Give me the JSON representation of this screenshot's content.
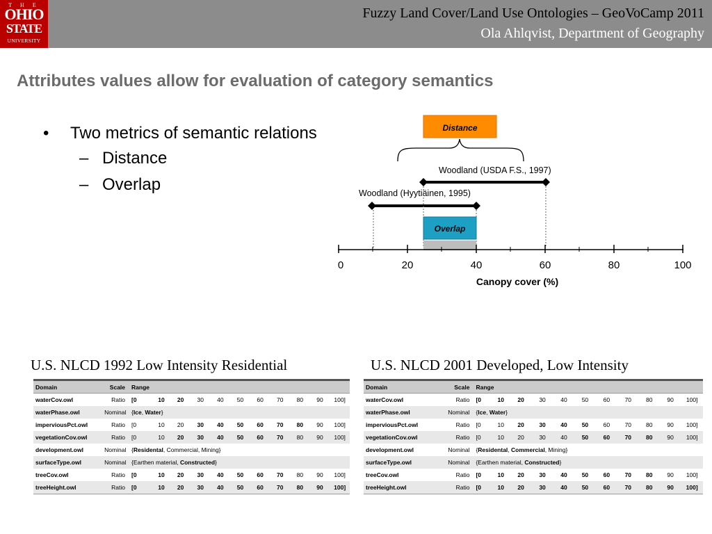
{
  "header": {
    "logo": {
      "the": "T H E",
      "ohio": "OHIO",
      "state": "STATE",
      "univ": "UNIVERSITY"
    },
    "line1": "Fuzzy Land Cover/Land Use Ontologies – GeoVoCamp 2011",
    "line2": "Ola Ahlqvist, Department of Geography"
  },
  "title": "Attributes values allow for evaluation of category semantics",
  "bullets": {
    "main": "Two metrics of semantic relations",
    "subs": [
      "Distance",
      "Overlap"
    ],
    "bullet_glyph": "•",
    "dash_glyph": "–"
  },
  "diagram": {
    "distance_label": "Distance",
    "overlap_label": "Overlap",
    "usda_label": "Woodland (USDA F.S., 1997)",
    "hyyt_label": "Woodland (Hyytiäinen, 1995)",
    "ticks": [
      "0",
      "20",
      "40",
      "60",
      "80",
      "100"
    ],
    "axis_label": "Canopy cover (%)",
    "colors": {
      "distance": "#ff8c00",
      "overlap": "#1e9fc4"
    }
  },
  "tables": [
    {
      "heading": "U.S. NLCD 1992 Low Intensity Residential",
      "columns": [
        "Domain",
        "Scale",
        "Range"
      ],
      "rows": [
        {
          "domain": "waterCov.owl",
          "scale": "Ratio",
          "range": "[0|10|20|30|40|50|60|70|80|90|100]",
          "bold": [
            0,
            1,
            2
          ]
        },
        {
          "domain": "waterPhase.owl",
          "scale": "Nominal",
          "range": "{Ice, Water}",
          "bold": []
        },
        {
          "domain": "imperviousPct.owl",
          "scale": "Ratio",
          "range": "[0|10|20|30|40|50|60|70|80|90|100]",
          "bold": [
            3,
            4,
            5,
            6,
            7,
            8
          ]
        },
        {
          "domain": "vegetationCov.owl",
          "scale": "Ratio",
          "range": "[0|10|20|30|40|50|60|70|80|90|100]",
          "bold": [
            2,
            3,
            4,
            5,
            6,
            7
          ]
        },
        {
          "domain": "development.owl",
          "scale": "Nominal",
          "range": "{Residental, Commercial, Mining}",
          "bold": []
        },
        {
          "domain": "surfaceType.owl",
          "scale": "Nominal",
          "range": "{Earthen material, Constructed}",
          "bold": []
        },
        {
          "domain": "treeCov.owl",
          "scale": "Ratio",
          "range": "[0|10|20|30|40|50|60|70|80|90|100]",
          "bold": [
            0,
            1,
            2,
            3,
            4,
            5,
            6,
            7
          ]
        },
        {
          "domain": "treeHeight.owl",
          "scale": "Ratio",
          "range": "[0|10|20|30|40|50|60|70|80|90|100]",
          "bold": [
            0,
            1,
            2,
            3,
            4,
            5,
            6,
            7,
            8,
            9,
            10
          ]
        }
      ]
    },
    {
      "heading": "U.S. NLCD 2001 Developed, Low Intensity",
      "columns": [
        "Domain",
        "Scale",
        "Range"
      ],
      "rows": [
        {
          "domain": "waterCov.owl",
          "scale": "Ratio",
          "range": "[0|10|20|30|40|50|60|70|80|90|100]",
          "bold": [
            0,
            1,
            2
          ]
        },
        {
          "domain": "waterPhase.owl",
          "scale": "Nominal",
          "range": "{Ice, Water}",
          "bold": []
        },
        {
          "domain": "imperviousPct.owl",
          "scale": "Ratio",
          "range": "[0|10|20|30|40|50|60|70|80|90|100]",
          "bold": [
            2,
            3,
            4,
            5
          ]
        },
        {
          "domain": "vegetationCov.owl",
          "scale": "Ratio",
          "range": "[0|10|20|30|40|50|60|70|80|90|100]",
          "bold": [
            5,
            6,
            7,
            8
          ]
        },
        {
          "domain": "development.owl",
          "scale": "Nominal",
          "range": "{Residental, Commercial, Mining}",
          "bold": []
        },
        {
          "domain": "surfaceType.owl",
          "scale": "Nominal",
          "range": "{Earthen material, Constructed}",
          "bold": []
        },
        {
          "domain": "treeCov.owl",
          "scale": "Ratio",
          "range": "[0|10|20|30|40|50|60|70|80|90|100]",
          "bold": [
            0,
            1,
            2,
            3,
            4,
            5,
            6,
            7,
            8
          ]
        },
        {
          "domain": "treeHeight.owl",
          "scale": "Ratio",
          "range": "[0|10|20|30|40|50|60|70|80|90|100]",
          "bold": [
            0,
            1,
            2,
            3,
            4,
            5,
            6,
            7,
            8,
            9,
            10
          ]
        }
      ]
    }
  ]
}
